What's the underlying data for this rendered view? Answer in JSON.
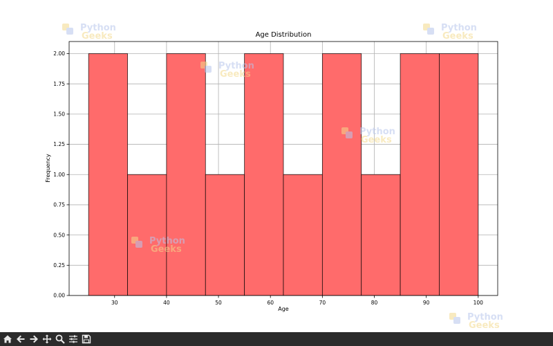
{
  "chart_data": {
    "type": "bar",
    "title": "Age Distribution",
    "xlabel": "Age",
    "ylabel": "Frequency",
    "bins": [
      {
        "start": 25,
        "end": 32.5,
        "value": 2
      },
      {
        "start": 32.5,
        "end": 40,
        "value": 1
      },
      {
        "start": 40,
        "end": 47.5,
        "value": 2
      },
      {
        "start": 47.5,
        "end": 55,
        "value": 1
      },
      {
        "start": 55,
        "end": 62.5,
        "value": 2
      },
      {
        "start": 62.5,
        "end": 70,
        "value": 1
      },
      {
        "start": 70,
        "end": 77.5,
        "value": 2
      },
      {
        "start": 77.5,
        "end": 85,
        "value": 1
      },
      {
        "start": 85,
        "end": 92.5,
        "value": 2
      },
      {
        "start": 92.5,
        "end": 100,
        "value": 2
      }
    ],
    "xlim": [
      21.25,
      103.75
    ],
    "ylim": [
      0,
      2.1
    ],
    "xticks": [
      30,
      40,
      50,
      60,
      70,
      80,
      90,
      100
    ],
    "xtick_labels": [
      "30",
      "40",
      "50",
      "60",
      "70",
      "80",
      "90",
      "100"
    ],
    "yticks": [
      0,
      0.25,
      0.5,
      0.75,
      1.0,
      1.25,
      1.5,
      1.75,
      2.0
    ],
    "ytick_labels": [
      "0.00",
      "0.25",
      "0.50",
      "0.75",
      "1.00",
      "1.25",
      "1.50",
      "1.75",
      "2.00"
    ],
    "grid": true,
    "bar_color": "#ff6b6b",
    "edge_color": "#000000"
  },
  "watermark": {
    "line1": "Python",
    "line2": "Geeks",
    "color1": "#c8d4f0",
    "color2": "#f7e2a8"
  },
  "toolbar": {
    "icons": [
      "home-icon",
      "back-arrow-icon",
      "forward-arrow-icon",
      "pan-icon",
      "zoom-icon",
      "configure-subplots-icon",
      "save-icon"
    ]
  }
}
